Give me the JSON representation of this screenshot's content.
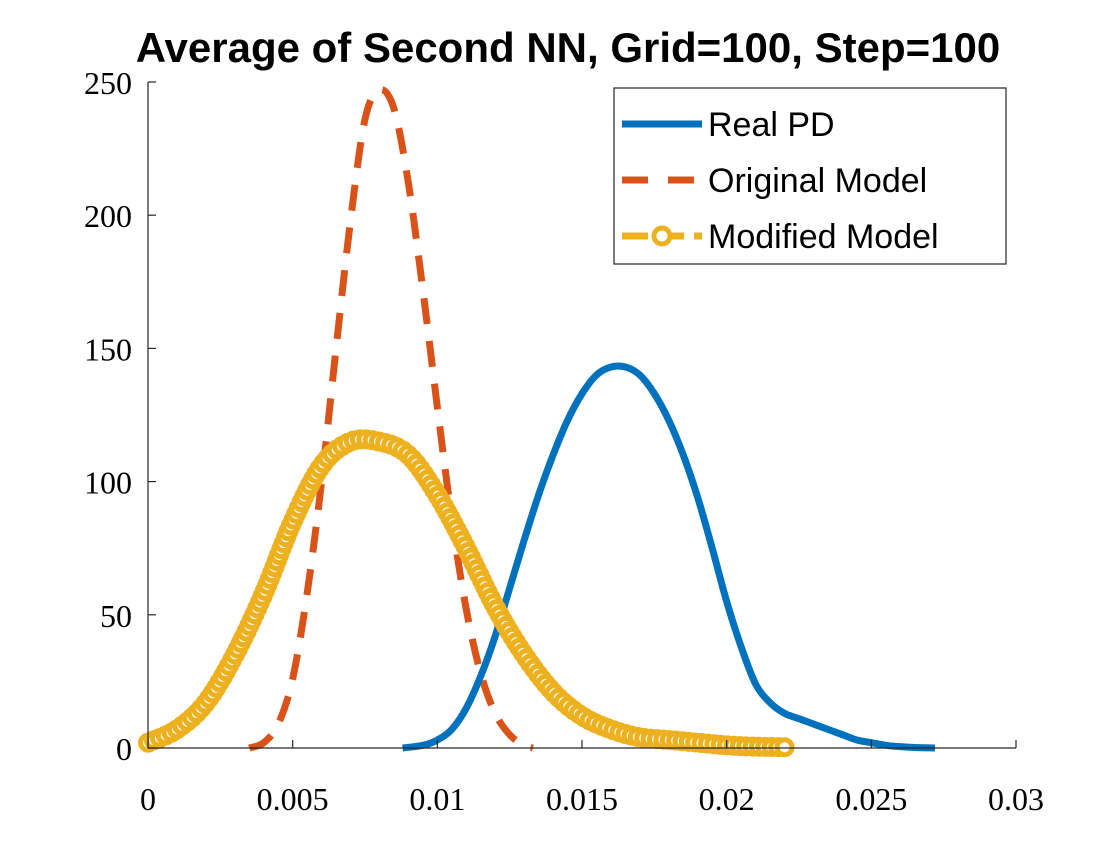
{
  "chart_data": {
    "type": "line",
    "title": "Average of Second NN, Grid=100, Step=100",
    "xlabel": "",
    "ylabel": "",
    "xlim": [
      0,
      0.03
    ],
    "ylim": [
      0,
      250
    ],
    "xticks": [
      0,
      0.005,
      0.01,
      0.015,
      0.02,
      0.025,
      0.03
    ],
    "xtick_labels": [
      "0",
      "0.005",
      "0.01",
      "0.015",
      "0.02",
      "0.025",
      "0.03"
    ],
    "yticks": [
      0,
      50,
      100,
      150,
      200,
      250
    ],
    "ytick_labels": [
      "0",
      "50",
      "100",
      "150",
      "200",
      "250"
    ],
    "grid": false,
    "legend_position": "top-right",
    "series": [
      {
        "name": "Real PD",
        "color": "#0072BD",
        "style": "solid",
        "marker": "none",
        "x": [
          0.0088,
          0.0095,
          0.01,
          0.0105,
          0.011,
          0.0115,
          0.012,
          0.0125,
          0.013,
          0.0135,
          0.014,
          0.0145,
          0.015,
          0.0155,
          0.016,
          0.0165,
          0.017,
          0.0175,
          0.018,
          0.0185,
          0.019,
          0.0195,
          0.02,
          0.0205,
          0.021,
          0.0215,
          0.022,
          0.0225,
          0.023,
          0.0235,
          0.024,
          0.0245,
          0.025,
          0.0255,
          0.026,
          0.0265,
          0.0272
        ],
        "y": [
          0,
          1,
          3,
          7,
          15,
          27,
          42,
          60,
          78,
          95,
          110,
          123,
          133,
          140,
          143,
          143,
          140,
          133,
          123,
          110,
          94,
          75,
          55,
          38,
          24,
          17,
          13,
          11,
          9,
          7,
          5,
          3,
          2,
          1,
          0.5,
          0.2,
          0
        ]
      },
      {
        "name": "Original Model",
        "color": "#D95319",
        "style": "dashed",
        "marker": "none",
        "x": [
          0.0035,
          0.004,
          0.0045,
          0.005,
          0.0055,
          0.006,
          0.0065,
          0.007,
          0.0075,
          0.008,
          0.0085,
          0.009,
          0.0095,
          0.01,
          0.0105,
          0.011,
          0.0115,
          0.012,
          0.0125,
          0.013,
          0.0133
        ],
        "y": [
          0,
          2,
          9,
          26,
          58,
          100,
          150,
          198,
          236,
          247,
          240,
          212,
          172,
          128,
          86,
          52,
          28,
          13,
          5,
          1,
          0
        ]
      },
      {
        "name": "Modified Model",
        "color": "#EDB120",
        "style": "dashed",
        "marker": "circle",
        "x": [
          0.0,
          0.001,
          0.002,
          0.003,
          0.004,
          0.005,
          0.006,
          0.007,
          0.008,
          0.009,
          0.01,
          0.011,
          0.012,
          0.013,
          0.014,
          0.015,
          0.016,
          0.017,
          0.018,
          0.019,
          0.02,
          0.021,
          0.022
        ],
        "y": [
          2,
          7,
          17,
          35,
          58,
          85,
          106,
          115,
          115,
          110,
          95,
          75,
          53,
          35,
          21,
          12,
          7,
          4,
          3,
          2,
          1,
          0.5,
          0.3
        ]
      }
    ]
  }
}
